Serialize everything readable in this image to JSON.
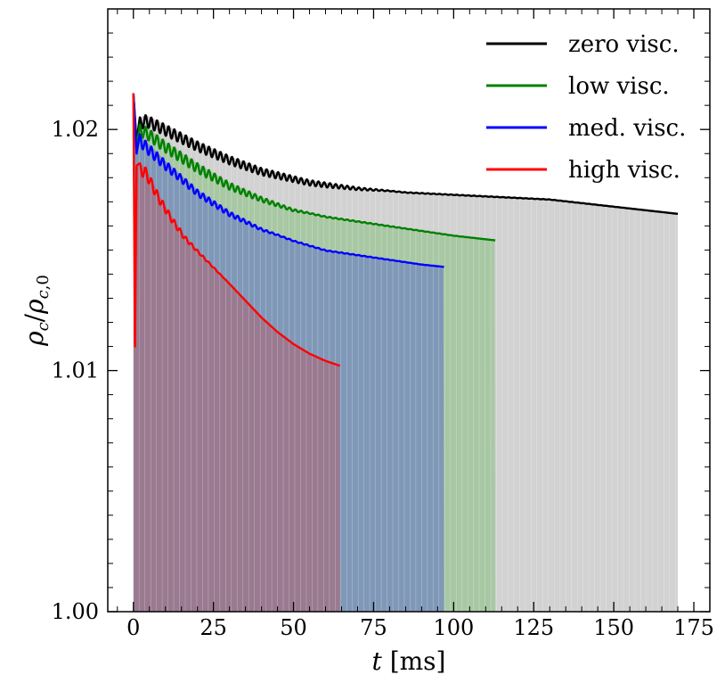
{
  "chart_data": {
    "type": "line",
    "xlabel": "t [ms]",
    "ylabel": "ρc/ρc,0",
    "xlim": [
      -8,
      180
    ],
    "ylim": [
      1.0,
      1.025
    ],
    "x_ticks": [
      0,
      25,
      50,
      75,
      100,
      125,
      150,
      175
    ],
    "x_tick_labels": [
      "0",
      "25",
      "50",
      "75",
      "100",
      "125",
      "150",
      "175"
    ],
    "y_ticks": [
      1.0,
      1.01,
      1.02
    ],
    "y_tick_labels": [
      "1.00",
      "1.01",
      "1.02"
    ],
    "legend_position": "top-right",
    "oscillation_period_ms": 1.8,
    "series": [
      {
        "name": "zero visc.",
        "color": "#000000",
        "fill_color": "#d2d2d2",
        "envelope_t": [
          0,
          1,
          2,
          4,
          10,
          20,
          30,
          40,
          55,
          70,
          85,
          100,
          115,
          130,
          150,
          170
        ],
        "envelope_y": [
          1.0215,
          1.0195,
          1.0205,
          1.0206,
          1.0202,
          1.0195,
          1.0189,
          1.0184,
          1.0179,
          1.0176,
          1.0174,
          1.0173,
          1.0172,
          1.0171,
          1.0168,
          1.0165
        ],
        "amplitude_t": [
          2,
          20,
          40,
          60,
          80,
          170
        ],
        "amplitude_y": [
          0.0005,
          0.0004,
          0.0003,
          0.0002,
          3e-05,
          0.0
        ]
      },
      {
        "name": "low visc.",
        "color": "#008000",
        "fill_color": "#a8c8a4",
        "envelope_t": [
          0,
          1,
          2,
          4,
          10,
          20,
          30,
          40,
          50,
          60,
          75,
          90,
          100,
          113
        ],
        "envelope_y": [
          1.0215,
          1.0192,
          1.0202,
          1.0201,
          1.0195,
          1.0186,
          1.0178,
          1.0172,
          1.0167,
          1.0164,
          1.0161,
          1.0158,
          1.0156,
          1.0154
        ],
        "amplitude_t": [
          2,
          20,
          40,
          55,
          113
        ],
        "amplitude_y": [
          0.0005,
          0.0004,
          0.0002,
          5e-05,
          0.0
        ]
      },
      {
        "name": "med. visc.",
        "color": "#0000ff",
        "fill_color": "#8098b8",
        "envelope_t": [
          0,
          1,
          2,
          4,
          10,
          20,
          30,
          40,
          50,
          60,
          75,
          90,
          97
        ],
        "envelope_y": [
          1.0215,
          1.019,
          1.0198,
          1.0195,
          1.0187,
          1.0175,
          1.0166,
          1.0159,
          1.0154,
          1.015,
          1.0147,
          1.0144,
          1.0143
        ],
        "amplitude_t": [
          2,
          15,
          30,
          45,
          97
        ],
        "amplitude_y": [
          0.0005,
          0.0003,
          0.0002,
          5e-05,
          0.0
        ]
      },
      {
        "name": "high visc.",
        "color": "#ff0000",
        "fill_color": "#9a7a90",
        "envelope_t": [
          0,
          0.5,
          1,
          2,
          4,
          8,
          12,
          16,
          20,
          25,
          30,
          35,
          40,
          45,
          50,
          55,
          60,
          64.5
        ],
        "envelope_y": [
          1.0215,
          1.011,
          1.0185,
          1.0186,
          1.0184,
          1.0173,
          1.0164,
          1.0156,
          1.015,
          1.0143,
          1.0136,
          1.0129,
          1.0122,
          1.0116,
          1.0111,
          1.0107,
          1.0104,
          1.0102
        ],
        "amplitude_t": [
          2,
          10,
          20,
          30,
          64.5
        ],
        "amplitude_y": [
          0.0005,
          0.0003,
          0.0001,
          0.0,
          0.0
        ]
      }
    ]
  }
}
